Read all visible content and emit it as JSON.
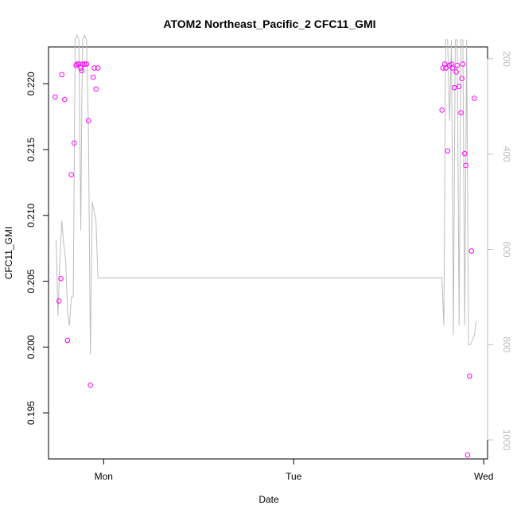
{
  "chart_data": {
    "type": "scatter",
    "title": "ATOM2 Northeast_Pacific_2 CFC11_GMI",
    "xlabel": "Date",
    "ylabel": "CFC11_GMI",
    "x_ticks": [
      "Mon",
      "Tue",
      "Wed"
    ],
    "x_range": [
      -0.29,
      2.02
    ],
    "y_ticks": [
      "0.195",
      "0.200",
      "0.205",
      "0.210",
      "0.215",
      "0.220"
    ],
    "ylim": [
      0.1915,
      0.2228
    ],
    "y2_ticks": [
      "200",
      "400",
      "600",
      "800",
      "1000"
    ],
    "y2lim": [
      1040,
      175
    ],
    "colors": {
      "points": "#ff00ff",
      "line": "#bdbdbd",
      "right_axis": "#bdbdbd"
    },
    "series": [
      {
        "kind": "points",
        "axis": "left",
        "x": [
          -0.255,
          -0.235,
          -0.225,
          -0.22,
          -0.205,
          -0.19,
          -0.17,
          -0.155,
          -0.145,
          -0.14,
          -0.13,
          -0.12,
          -0.115,
          -0.11,
          -0.1,
          -0.09,
          -0.08,
          -0.07,
          -0.055,
          -0.05,
          -0.04,
          -0.03,
          1.78,
          1.785,
          1.795,
          1.8,
          1.81,
          1.82,
          1.83,
          1.835,
          1.845,
          1.855,
          1.86,
          1.87,
          1.88,
          1.885,
          1.89,
          1.9,
          1.905,
          1.915,
          1.925,
          1.935,
          1.95
        ],
        "y": [
          0.219,
          0.2035,
          0.2052,
          0.2207,
          0.2188,
          0.2005,
          0.2131,
          0.2155,
          0.2214,
          0.2215,
          0.2215,
          0.2212,
          0.221,
          0.2215,
          0.2215,
          0.2215,
          0.2172,
          0.1971,
          0.2205,
          0.2212,
          0.2196,
          0.2212,
          0.218,
          0.2212,
          0.2215,
          0.2212,
          0.2149,
          0.2214,
          0.2215,
          0.2212,
          0.2197,
          0.2209,
          0.2214,
          0.2198,
          0.2178,
          0.2204,
          0.2215,
          0.2147,
          0.2138,
          0.1918,
          0.1978,
          0.2073,
          0.2189
        ]
      },
      {
        "kind": "line",
        "axis": "right",
        "x": [
          -0.25,
          -0.24,
          -0.23,
          -0.22,
          -0.21,
          -0.2,
          -0.19,
          -0.18,
          -0.17,
          -0.16,
          -0.15,
          -0.14,
          -0.13,
          -0.12,
          -0.115,
          -0.11,
          -0.1,
          -0.09,
          -0.08,
          -0.07,
          -0.06,
          -0.05,
          -0.04,
          -0.03,
          -0.02,
          1.78,
          1.79,
          1.8,
          1.81,
          1.82,
          1.83,
          1.84,
          1.85,
          1.86,
          1.87,
          1.88,
          1.89,
          1.9,
          1.91,
          1.92,
          1.93,
          1.94,
          1.95,
          1.96
        ],
        "y": [
          580,
          740,
          620,
          540,
          590,
          620,
          730,
          760,
          700,
          700,
          160,
          150,
          160,
          560,
          300,
          160,
          150,
          160,
          350,
          820,
          500,
          520,
          540,
          660,
          660,
          660,
          760,
          160,
          160,
          330,
          160,
          780,
          160,
          160,
          760,
          160,
          160,
          760,
          160,
          800,
          800,
          790,
          780,
          750
        ]
      }
    ]
  }
}
